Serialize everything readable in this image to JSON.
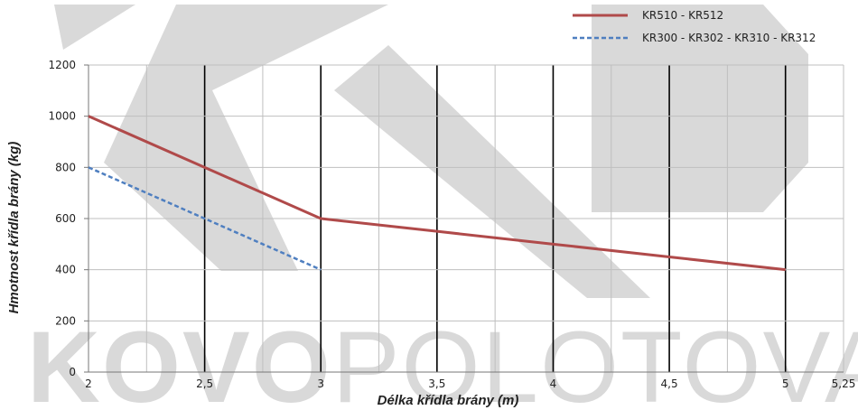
{
  "colors": {
    "series_solid": "#b04a4a",
    "series_dashed": "#4f7fc0",
    "watermark": "#d9d9d9",
    "grid": "#bfbfbf",
    "grid_major": "#000000"
  },
  "watermark": {
    "bold_part": "KOVO",
    "light_part": "POLOTOVARY.C"
  },
  "chart_data": {
    "type": "line",
    "xlabel": "Délka křídla brány (m)",
    "ylabel": "Hmotnost křídla brány (kg)",
    "xlim": [
      2,
      5.25
    ],
    "ylim": [
      0,
      1200
    ],
    "x_ticks": [
      {
        "value": 2,
        "label": "2"
      },
      {
        "value": 2.5,
        "label": "2,5"
      },
      {
        "value": 3,
        "label": "3"
      },
      {
        "value": 3.5,
        "label": "3,5"
      },
      {
        "value": 4,
        "label": "4"
      },
      {
        "value": 4.5,
        "label": "4,5"
      },
      {
        "value": 5,
        "label": "5"
      },
      {
        "value": 5.25,
        "label": "5,25"
      }
    ],
    "y_ticks": [
      {
        "value": 0,
        "label": "0"
      },
      {
        "value": 200,
        "label": "200"
      },
      {
        "value": 400,
        "label": "400"
      },
      {
        "value": 600,
        "label": "600"
      },
      {
        "value": 800,
        "label": "800"
      },
      {
        "value": 1000,
        "label": "1000"
      },
      {
        "value": 1200,
        "label": "1200"
      }
    ],
    "grid": true,
    "legend": "top-right",
    "series": [
      {
        "name": "KR510 - KR512",
        "style": "solid",
        "points": [
          [
            2,
            1000
          ],
          [
            2.5,
            800
          ],
          [
            3,
            600
          ],
          [
            3.5,
            550
          ],
          [
            4,
            500
          ],
          [
            4.5,
            450
          ],
          [
            5,
            400
          ]
        ]
      },
      {
        "name": "KR300  - KR302 - KR310 - KR312",
        "style": "dashed",
        "points": [
          [
            2,
            800
          ],
          [
            2.5,
            600
          ],
          [
            3,
            400
          ]
        ]
      }
    ]
  }
}
